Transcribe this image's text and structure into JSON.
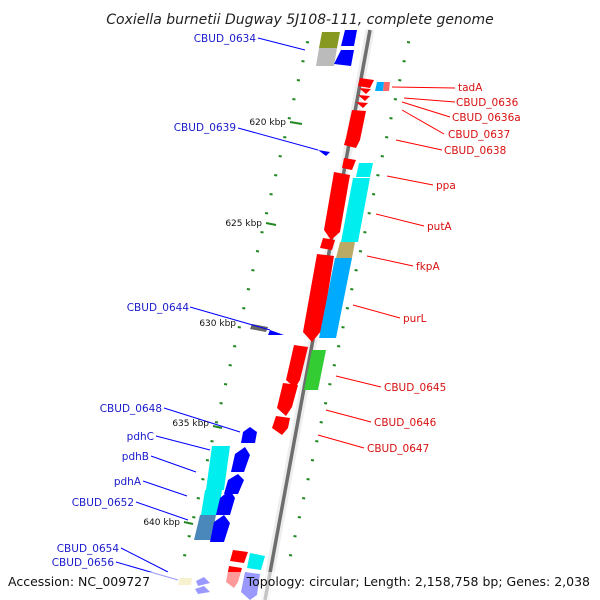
{
  "map": {
    "title": "Coxiella burnetii Dugway 5J108-111, complete genome",
    "accession": "Accession: NC_009727",
    "topology": "Topology: circular; Length: 2,158,758 bp; Genes: 2,038"
  },
  "kbp_labels": [
    "620 kbp",
    "625 kbp",
    "630 kbp",
    "635 kbp",
    "640 kbp"
  ],
  "blue_labels": [
    "CBUD_0634",
    "CBUD_0639",
    "CBUD_0644",
    "CBUD_0648",
    "pdhC",
    "pdhB",
    "pdhA",
    "CBUD_0652",
    "CBUD_0654",
    "CBUD_0656"
  ],
  "red_labels": [
    "tadA",
    "CBUD_0636",
    "CBUD_0636a",
    "CBUD_0637",
    "CBUD_0638",
    "ppa",
    "putA",
    "fkpA",
    "purL",
    "CBUD_0645",
    "CBUD_0646",
    "CBUD_0647"
  ],
  "colors": {
    "forward_gene": "#ff0000",
    "reverse_gene": "#0000ff",
    "forward_label": "#d81010",
    "reverse_label": "#1a1acc",
    "cyan_category": "#00eeee",
    "skyblue_category": "#00aaff",
    "green_category": "#33cc33",
    "olive_category": "#889922",
    "khaki_category": "#bbaa66",
    "steelblue_category": "#4a88bb",
    "grey_category": "#777777",
    "tick": "#228822"
  }
}
